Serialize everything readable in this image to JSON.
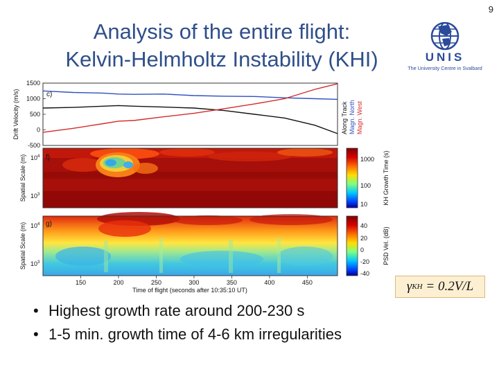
{
  "page": {
    "number": "9",
    "title_line1": "Analysis of the entire flight:",
    "title_line2": "Kelvin-Helmholtz Instability (KHI)"
  },
  "logo": {
    "name": "UNIS",
    "subtitle": "The University Centre in Svalbard",
    "icon": "globe-icon",
    "color": "#2a4a9a"
  },
  "formula": {
    "lhs_symbol": "γ",
    "lhs_subscript": "KH",
    "rhs": "= 0.2V/L"
  },
  "bullets": [
    "Highest growth rate around 200-230 s",
    "1-5 min. growth time of 4-6 km irregularities"
  ],
  "chart_data": [
    {
      "type": "line",
      "panel_label": "c)",
      "ylabel": "Drift Velocity (m/s)",
      "y_ticks": [
        "1500",
        "1000",
        "500",
        "0",
        "-500"
      ],
      "ylim": [
        -500,
        1500
      ],
      "xlim": [
        100,
        490
      ],
      "x": [
        100,
        140,
        180,
        200,
        220,
        260,
        300,
        340,
        380,
        420,
        460,
        490
      ],
      "series": [
        {
          "name": "Along Track",
          "color": "#111111",
          "values": [
            700,
            720,
            760,
            780,
            760,
            730,
            700,
            620,
            500,
            380,
            150,
            -120
          ]
        },
        {
          "name": "Magn. North",
          "color": "#2f4fbf",
          "values": [
            1250,
            1200,
            1180,
            1150,
            1140,
            1150,
            1100,
            1080,
            1070,
            1030,
            1000,
            980
          ]
        },
        {
          "name": "Magn. West",
          "color": "#d42a2a",
          "values": [
            -80,
            50,
            200,
            280,
            300,
            420,
            530,
            680,
            830,
            1000,
            1300,
            1480
          ]
        }
      ],
      "grid": false
    },
    {
      "type": "heatmap",
      "panel_label": "f)",
      "ylabel": "Spatial Scale (m)",
      "y_ticks": [
        "10",
        "10"
      ],
      "y_tick_exponents": [
        "4",
        "3"
      ],
      "colorbar_label": "KH Growth Time (s)",
      "colorbar_ticks": [
        "1000",
        "100",
        "10"
      ],
      "xlim": [
        100,
        490
      ],
      "note": "minimum growth time near 200-230 s"
    },
    {
      "type": "heatmap",
      "panel_label": "g)",
      "ylabel": "Spatial Scale (m)",
      "y_ticks": [
        "10",
        "10"
      ],
      "y_tick_exponents": [
        "4",
        "3"
      ],
      "colorbar_label": "PSD Vel. (dB)",
      "colorbar_ticks": [
        "40",
        "20",
        "0",
        "-20",
        "-40"
      ],
      "xlim": [
        100,
        490
      ],
      "x_ticks": [
        "150",
        "200",
        "250",
        "300",
        "350",
        "400",
        "450"
      ],
      "x_tick_values": [
        150,
        200,
        250,
        300,
        350,
        400,
        450
      ],
      "xlabel": "Time of flight (seconds after 10:35:10 UT)"
    }
  ]
}
